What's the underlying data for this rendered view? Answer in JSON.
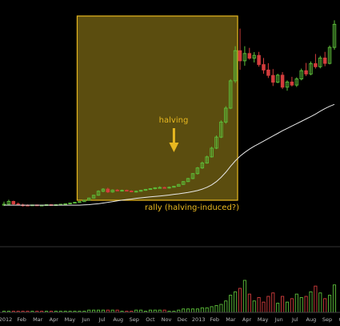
{
  "chart_data": {
    "type": "candlestick",
    "price_panel": {
      "series": [
        {
          "kind": "candles",
          "values": [
            [
              5.0,
              6.5,
              4.6,
              5.4
            ],
            [
              5.4,
              7.3,
              5.1,
              6.6
            ],
            [
              6.6,
              6.9,
              5.2,
              5.5
            ],
            [
              5.5,
              6.1,
              4.9,
              5.1
            ],
            [
              5.1,
              5.6,
              4.4,
              5.0
            ],
            [
              5.0,
              5.3,
              4.6,
              4.9
            ],
            [
              4.9,
              5.2,
              4.7,
              5.1
            ],
            [
              5.1,
              5.2,
              4.9,
              5.0
            ],
            [
              5.0,
              5.1,
              4.9,
              5.0
            ],
            [
              5.0,
              5.3,
              4.9,
              5.2
            ],
            [
              5.2,
              5.3,
              5.0,
              5.1
            ],
            [
              5.1,
              5.3,
              5.0,
              5.2
            ],
            [
              5.2,
              5.5,
              5.1,
              5.4
            ],
            [
              5.4,
              5.7,
              5.3,
              5.6
            ],
            [
              5.6,
              6.0,
              5.5,
              5.9
            ],
            [
              5.9,
              6.3,
              5.8,
              6.2
            ],
            [
              6.2,
              6.6,
              6.0,
              6.5
            ],
            [
              6.5,
              7.2,
              6.4,
              7.1
            ],
            [
              7.1,
              8.2,
              7.0,
              8.0
            ],
            [
              8.0,
              9.4,
              7.9,
              9.2
            ],
            [
              9.2,
              11.3,
              9.0,
              10.9
            ],
            [
              10.9,
              12.2,
              10.5,
              11.8
            ],
            [
              11.8,
              12.4,
              10.2,
              10.6
            ],
            [
              10.6,
              11.7,
              10.3,
              11.4
            ],
            [
              11.4,
              11.8,
              10.9,
              11.1
            ],
            [
              11.1,
              11.6,
              10.8,
              11.3
            ],
            [
              11.3,
              11.6,
              10.9,
              11.0
            ],
            [
              11.0,
              11.3,
              10.5,
              10.7
            ],
            [
              10.7,
              11.2,
              10.4,
              10.9
            ],
            [
              10.9,
              11.5,
              10.7,
              11.3
            ],
            [
              11.3,
              11.9,
              11.1,
              11.7
            ],
            [
              11.7,
              12.2,
              11.5,
              12.0
            ],
            [
              12.0,
              12.6,
              11.7,
              12.4
            ],
            [
              12.4,
              13.0,
              12.2,
              12.5
            ],
            [
              12.5,
              12.8,
              12.1,
              12.3
            ],
            [
              12.3,
              12.9,
              12.0,
              12.6
            ],
            [
              12.6,
              13.1,
              12.5,
              13.0
            ],
            [
              13.0,
              14.0,
              12.9,
              13.8
            ],
            [
              13.8,
              15.2,
              13.6,
              15.0
            ],
            [
              15.0,
              16.6,
              14.8,
              16.3
            ],
            [
              16.3,
              18.6,
              16.0,
              18.4
            ],
            [
              18.4,
              21.2,
              18.0,
              20.8
            ],
            [
              20.8,
              23.5,
              20.4,
              22.9
            ],
            [
              22.9,
              26.0,
              22.6,
              25.5
            ],
            [
              25.5,
              29.8,
              25.2,
              29.2
            ],
            [
              29.2,
              34.6,
              28.8,
              33.9
            ],
            [
              33.9,
              41.0,
              33.5,
              40.3
            ],
            [
              40.3,
              47.0,
              39.6,
              46.2
            ],
            [
              46.2,
              58.5,
              45.8,
              57.8
            ],
            [
              57.8,
              72.5,
              56.9,
              70.6
            ],
            [
              70.6,
              80.0,
              62.5,
              66.3
            ],
            [
              66.3,
              72.5,
              64.2,
              69.4
            ],
            [
              69.4,
              71.8,
              66.8,
              67.4
            ],
            [
              67.4,
              70.0,
              65.6,
              68.6
            ],
            [
              68.6,
              70.1,
              63.8,
              64.7
            ],
            [
              64.7,
              67.5,
              60.8,
              62.4
            ],
            [
              62.4,
              65.3,
              59.0,
              60.1
            ],
            [
              60.1,
              62.8,
              55.6,
              57.2
            ],
            [
              57.2,
              60.8,
              56.8,
              60.2
            ],
            [
              60.2,
              61.5,
              54.3,
              55.1
            ],
            [
              55.1,
              58.0,
              53.6,
              57.3
            ],
            [
              57.3,
              59.5,
              55.4,
              56.0
            ],
            [
              56.0,
              59.3,
              55.2,
              58.6
            ],
            [
              58.6,
              63.0,
              58.0,
              62.1
            ],
            [
              62.1,
              65.4,
              59.8,
              60.7
            ],
            [
              60.7,
              66.0,
              60.2,
              65.1
            ],
            [
              65.1,
              69.2,
              63.0,
              63.8
            ],
            [
              63.8,
              68.4,
              63.1,
              67.5
            ],
            [
              67.5,
              70.1,
              64.0,
              65.2
            ],
            [
              65.2,
              72.8,
              64.8,
              72.0
            ],
            [
              72.0,
              83.5,
              71.0,
              81.8
            ]
          ]
        },
        {
          "kind": "moving-average",
          "values": [
            5.0,
            5.0,
            5.0,
            5.0,
            5.0,
            5.0,
            5.0,
            5.0,
            5.0,
            5.0,
            5.0,
            5.0,
            5.0,
            5.0,
            5.0,
            5.0,
            5.0,
            5.1,
            5.2,
            5.4,
            5.6,
            5.9,
            6.2,
            6.5,
            6.8,
            7.1,
            7.4,
            7.6,
            7.9,
            8.1,
            8.3,
            8.5,
            8.7,
            8.9,
            9.1,
            9.3,
            9.6,
            9.8,
            10.1,
            10.4,
            10.8,
            11.2,
            11.8,
            12.6,
            13.6,
            15.0,
            16.8,
            19.0,
            21.5,
            23.8,
            25.8,
            27.4,
            28.8,
            30.0,
            31.1,
            32.2,
            33.3,
            34.4,
            35.5,
            36.6,
            37.6,
            38.6,
            39.6,
            40.6,
            41.6,
            42.6,
            43.7,
            44.9,
            46.0,
            47.0,
            47.8
          ]
        }
      ]
    },
    "volume_panel": {
      "values": [
        1,
        1,
        1,
        1,
        1,
        1,
        1,
        1,
        1,
        1,
        1,
        1,
        1,
        1,
        1,
        1,
        1,
        1,
        2,
        2,
        2,
        2,
        2,
        2,
        2,
        1,
        1,
        1,
        2,
        2,
        1,
        2,
        2,
        2,
        2,
        1,
        1,
        2,
        3,
        3,
        3,
        3,
        4,
        4,
        5,
        6,
        7,
        10,
        15,
        18,
        21,
        28,
        16,
        10,
        13,
        9,
        14,
        17,
        8,
        14,
        9,
        12,
        16,
        13,
        14,
        18,
        23,
        17,
        12,
        15,
        24
      ],
      "direction": [
        "u",
        "u",
        "d",
        "d",
        "d",
        "d",
        "u",
        "d",
        "d",
        "u",
        "d",
        "u",
        "u",
        "u",
        "u",
        "u",
        "u",
        "u",
        "u",
        "u",
        "u",
        "u",
        "d",
        "u",
        "d",
        "u",
        "d",
        "d",
        "u",
        "u",
        "u",
        "u",
        "u",
        "u",
        "d",
        "u",
        "u",
        "u",
        "u",
        "u",
        "u",
        "u",
        "u",
        "u",
        "u",
        "u",
        "u",
        "u",
        "u",
        "u",
        "d",
        "u",
        "d",
        "u",
        "d",
        "d",
        "d",
        "d",
        "u",
        "d",
        "u",
        "d",
        "u",
        "u",
        "d",
        "u",
        "d",
        "u",
        "d",
        "u",
        "u"
      ]
    },
    "x_axis": {
      "tick_labels": [
        "2012",
        "Feb",
        "Mar",
        "Apr",
        "May",
        "Jun",
        "Jul",
        "Aug",
        "Sep",
        "Oct",
        "Nov",
        "Dec",
        "2013",
        "Feb",
        "Mar",
        "Apr",
        "May",
        "Jun",
        "Jul",
        "Aug",
        "Sep",
        "Oct"
      ]
    },
    "annotations": [
      {
        "label": "halving",
        "kind": "arrow"
      },
      {
        "label": "rally (halving-induced?)",
        "kind": "highlight-region"
      }
    ],
    "colors": {
      "background": "#000000",
      "up": "#5dbf3a",
      "down": "#d43d3d",
      "moving_average": "#e8e8e8",
      "highlight_fill": "#6b5a12",
      "highlight_border": "#e8b820",
      "annotation_text": "#e8b820",
      "axis_text": "#bbbbbb"
    }
  }
}
